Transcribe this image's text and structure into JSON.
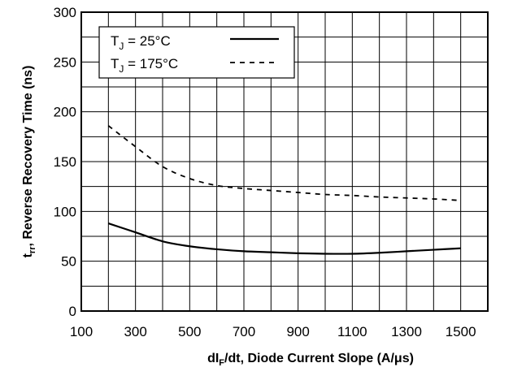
{
  "chart_data": {
    "type": "line",
    "title": "",
    "xlabel": {
      "pre": "dI",
      "sub": "F",
      "post": "/dt, Diode Current Slope (A/μs)"
    },
    "ylabel": {
      "pre": "t",
      "sub": "rr",
      "post": ", Reverse Recovery Time (ns)"
    },
    "xlim": [
      100,
      1600
    ],
    "ylim": [
      0,
      300
    ],
    "xticks": [
      100,
      300,
      500,
      700,
      900,
      1100,
      1300,
      1500
    ],
    "yticks": [
      0,
      50,
      100,
      150,
      200,
      250,
      300
    ],
    "grid": true,
    "legend": "top-left",
    "series": [
      {
        "name": {
          "pre": "T",
          "sub": "J",
          "post": " = 25°C"
        },
        "style": "solid",
        "color": "#000000",
        "x": [
          200,
          300,
          400,
          500,
          600,
          700,
          800,
          900,
          1000,
          1100,
          1200,
          1300,
          1400,
          1500
        ],
        "y": [
          88,
          79,
          70,
          65,
          62,
          60,
          59,
          58,
          57.5,
          57.5,
          58.5,
          60,
          61.5,
          63
        ]
      },
      {
        "name": {
          "pre": "T",
          "sub": "J",
          "post": " = 175°C"
        },
        "style": "dashed",
        "color": "#000000",
        "x": [
          200,
          300,
          400,
          500,
          600,
          700,
          800,
          900,
          1000,
          1100,
          1200,
          1300,
          1400,
          1500
        ],
        "y": [
          186,
          165,
          145,
          133,
          126,
          123,
          121,
          119,
          117,
          116,
          114.5,
          113.5,
          112.5,
          111
        ]
      }
    ]
  }
}
